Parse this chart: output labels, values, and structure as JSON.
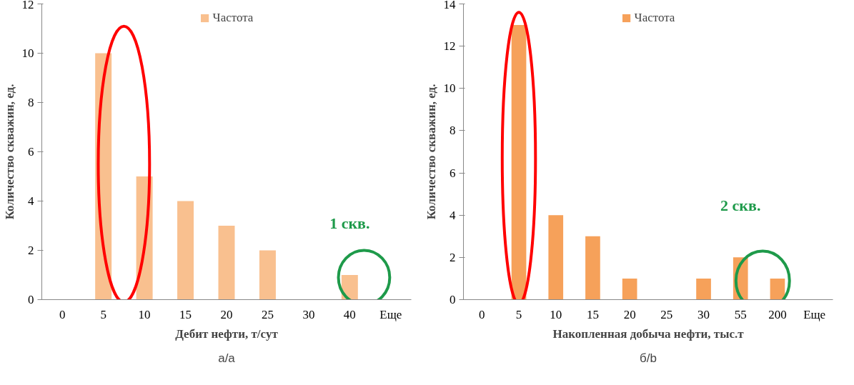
{
  "chart_data": [
    {
      "type": "bar",
      "categories": [
        "0",
        "5",
        "10",
        "15",
        "20",
        "25",
        "30",
        "40",
        "Еще"
      ],
      "series": [
        {
          "name": "Частота",
          "color": "#f9c08f",
          "values": [
            0,
            10,
            5,
            4,
            3,
            2,
            0,
            1,
            0
          ]
        }
      ],
      "xlabel": "Дебит нефти, т/сут",
      "ylabel": "Количество скважин, ед.",
      "ylim": [
        0,
        12
      ],
      "yticks": [
        0,
        2,
        4,
        6,
        8,
        10,
        12
      ],
      "grid": false,
      "legend": "top",
      "annotations": [
        {
          "text": "1 скв.",
          "x": "40",
          "y": 1
        },
        "а/а"
      ]
    },
    {
      "type": "bar",
      "categories": [
        "0",
        "5",
        "10",
        "15",
        "20",
        "25",
        "30",
        "55",
        "200",
        "Еще"
      ],
      "series": [
        {
          "name": "Частота",
          "color": "#f6a15a",
          "values": [
            0,
            13,
            4,
            3,
            1,
            0,
            1,
            2,
            1,
            0
          ]
        }
      ],
      "xlabel": "Накопленная добыча нефти, тыс.т",
      "ylabel": "Количество скважин, ед.",
      "ylim": [
        0,
        14
      ],
      "yticks": [
        0,
        2,
        4,
        6,
        8,
        10,
        12,
        14
      ],
      "grid": false,
      "legend": "top",
      "annotations": [
        {
          "text": "2 скв.",
          "x": "55",
          "y": 2
        },
        "б/b"
      ]
    }
  ]
}
